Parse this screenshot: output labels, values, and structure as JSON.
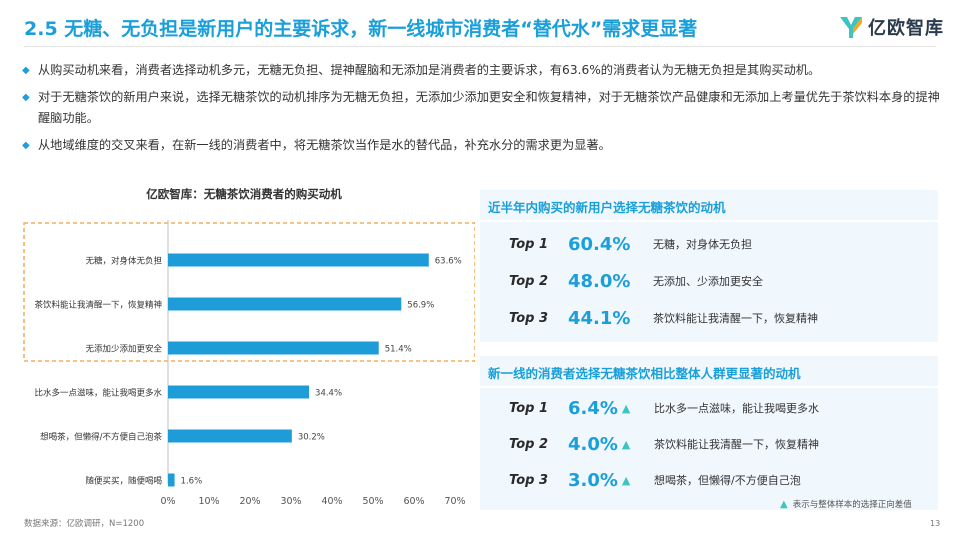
{
  "header": {
    "title": "2.5 无糖、无负担是新用户的主要诉求，新一线城市消费者“替代水”需求更显著",
    "logo_text": "亿欧智库"
  },
  "bullets": [
    "从购买动机来看，消费者选择动机多元，无糖无负担、提神醒脑和无添加是消费者的主要诉求，有63.6%的消费者认为无糖无负担是其购买动机。",
    "对于无糖茶饮的新用户来说，选择无糖茶饮的动机排序为无糖无负担，无添加少添加更安全和恢复精神，对于无糖茶饮产品健康和无添加上考量优先于茶饮料本身的提神醒脑功能。",
    "从地域维度的交叉来看，在新一线的消费者中，将无糖茶饮当作是水的替代品，补充水分的需求更为显著。"
  ],
  "chart_data": {
    "type": "bar",
    "orientation": "horizontal",
    "title": "亿欧智库：无糖茶饮消费者的购买动机",
    "categories": [
      "无糖，对身体无负担",
      "茶饮料能让我清醒一下，恢复精神",
      "无添加少添加更安全",
      "比水多一点滋味，能让我喝更多水",
      "想喝茶，但懒得/不方便自己泡茶",
      "随便买买，随便喝喝"
    ],
    "values": [
      63.6,
      56.9,
      51.4,
      34.4,
      30.2,
      1.6
    ],
    "value_labels": [
      "63.6%",
      "56.9%",
      "51.4%",
      "34.4%",
      "30.2%",
      "1.6%"
    ],
    "x_ticks": [
      "0%",
      "10%",
      "20%",
      "30%",
      "40%",
      "50%",
      "60%",
      "70%"
    ],
    "xlim": [
      0,
      70
    ],
    "highlighted_top_n": 3,
    "color": "#1e9cd7",
    "highlight_color": "#f39c3c"
  },
  "panel_new_users": {
    "heading": "近半年内购买的新用户选择无糖茶饮的动机",
    "rows": [
      {
        "rank": "Top 1",
        "pct": "60.4%",
        "desc": "无糖，对身体无负担"
      },
      {
        "rank": "Top 2",
        "pct": "48.0%",
        "desc": "无添加、少添加更安全"
      },
      {
        "rank": "Top 3",
        "pct": "44.1%",
        "desc": "茶饮料能让我清醒一下，恢复精神"
      }
    ]
  },
  "panel_new_tier1": {
    "heading": "新一线的消费者选择无糖茶饮相比整体人群更显著的动机",
    "rows": [
      {
        "rank": "Top 1",
        "pct": "6.4%",
        "desc": "比水多一点滋味，能让我喝更多水"
      },
      {
        "rank": "Top 2",
        "pct": "4.0%",
        "desc": "茶饮料能让我清醒一下，恢复精神"
      },
      {
        "rank": "Top 3",
        "pct": "3.0%",
        "desc": "想喝茶，但懒得/不方便自己泡"
      }
    ]
  },
  "legend_note": "表示与整体样本的选择正向差值",
  "footer": {
    "source": "数据来源：亿欧调研，N=1200",
    "page": "13"
  }
}
